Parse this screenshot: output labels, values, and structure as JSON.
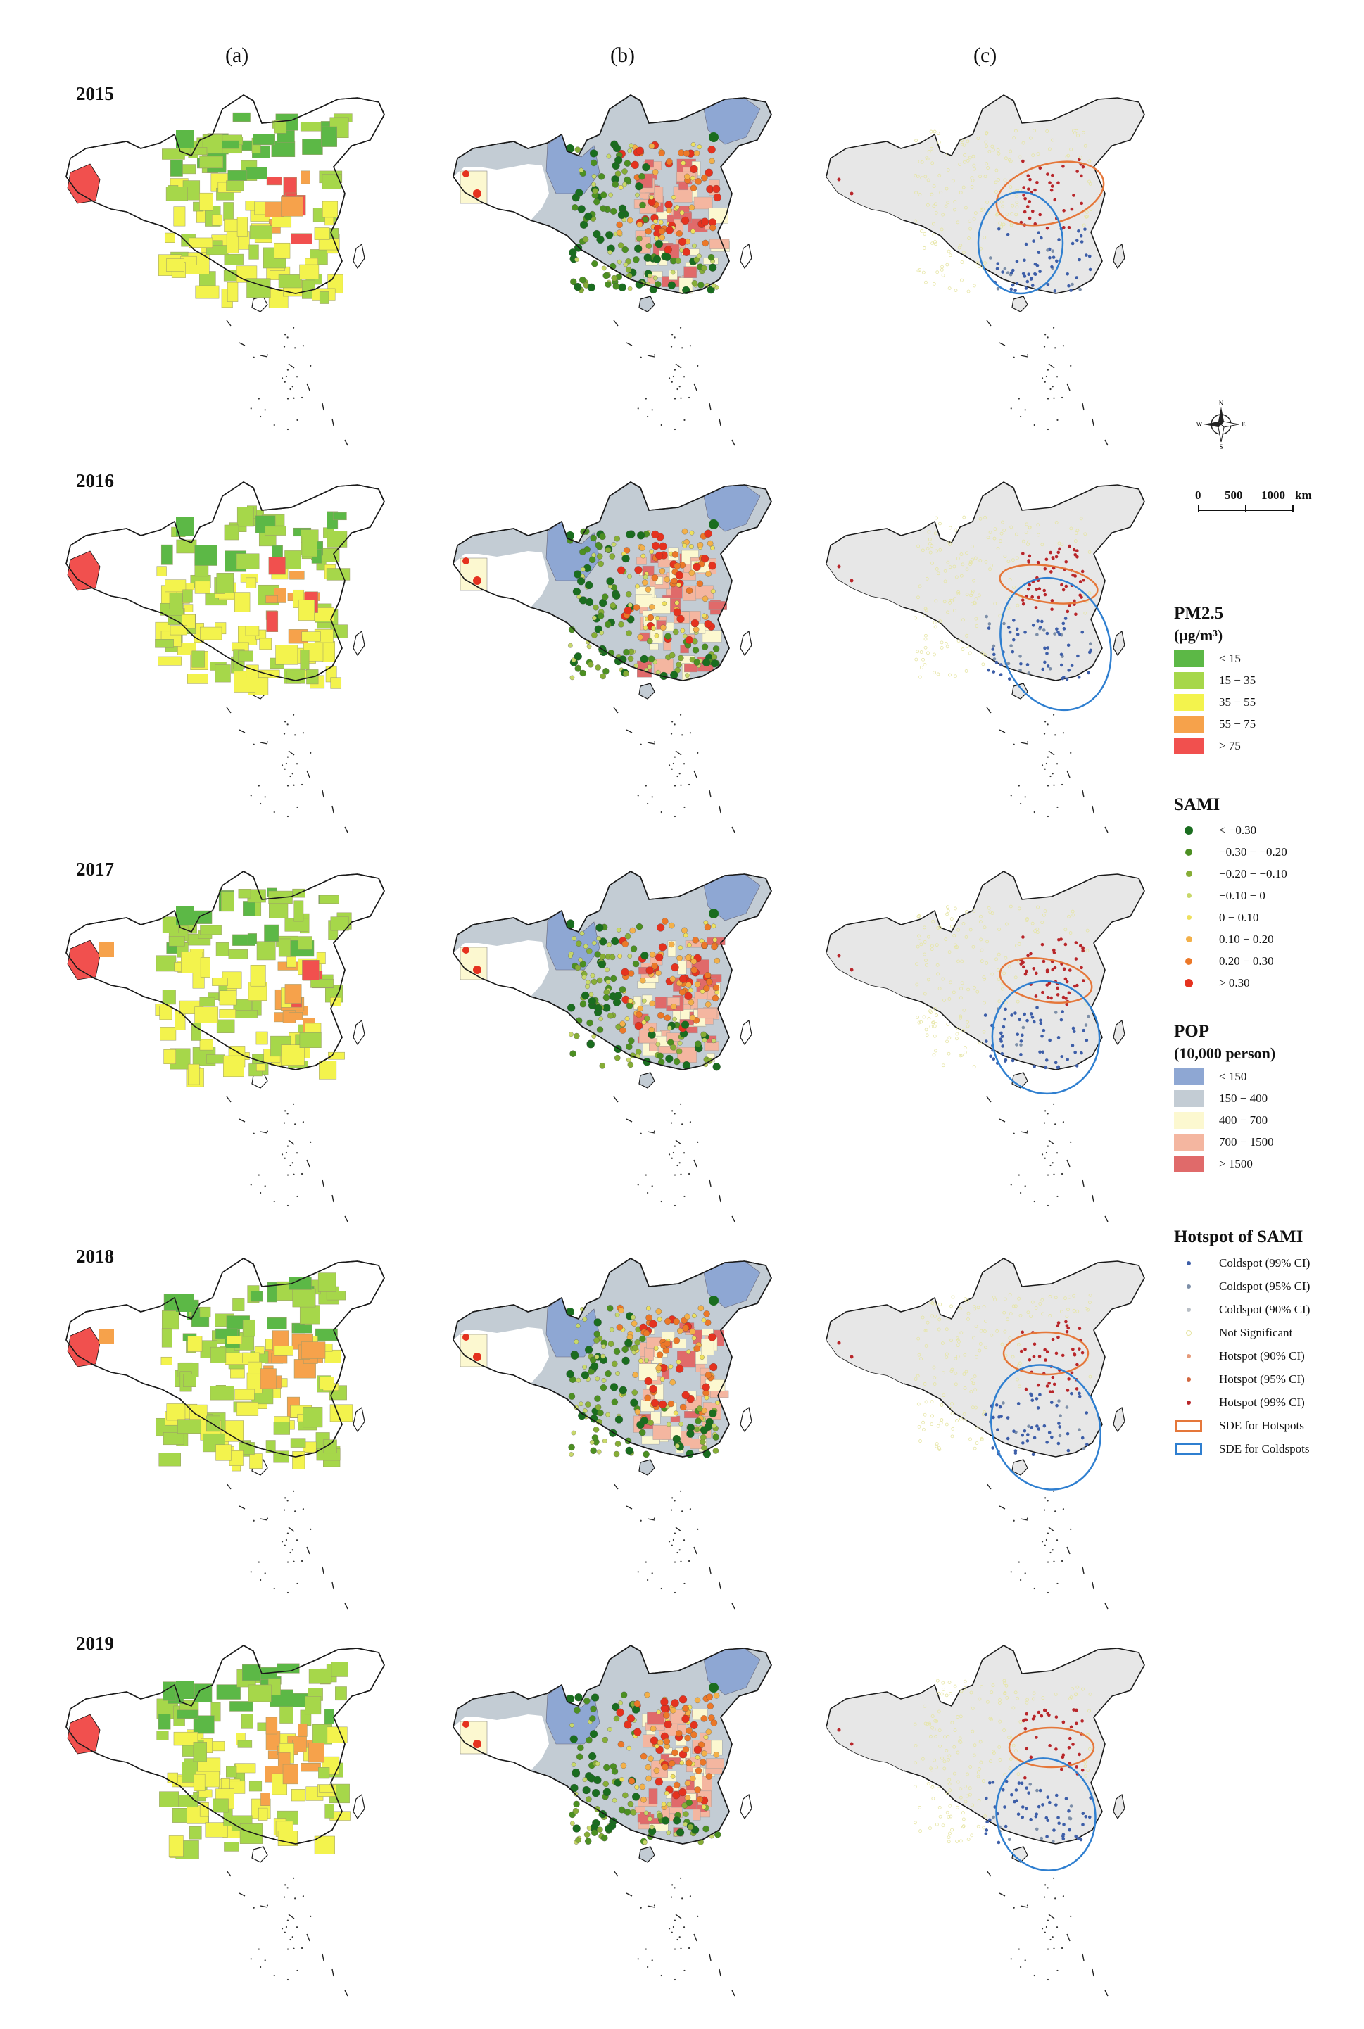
{
  "columns": [
    "(a)",
    "(b)",
    "(c)"
  ],
  "years": [
    "2015",
    "2016",
    "2017",
    "2018",
    "2019"
  ],
  "compass": {
    "n": "N",
    "s": "S",
    "e": "E",
    "w": "W"
  },
  "scale": {
    "zero": "0",
    "mid": "500",
    "max": "1000",
    "unit": "km"
  },
  "pm25_legend": {
    "title": "PM2.5",
    "unit": "(μg/m³)",
    "classes": [
      {
        "label": "< 15",
        "color": "#5cb846"
      },
      {
        "label": "15 − 35",
        "color": "#a6d74a"
      },
      {
        "label": "35 − 55",
        "color": "#f3f34d"
      },
      {
        "label": "55 − 75",
        "color": "#f6a24b"
      },
      {
        "label": "> 75",
        "color": "#f1504e"
      }
    ]
  },
  "sami_legend": {
    "title": "SAMI",
    "classes": [
      {
        "label": "< −0.30",
        "color": "#1a6d1f",
        "size": 12
      },
      {
        "label": "−0.30 − −0.20",
        "color": "#4c8f22",
        "size": 10
      },
      {
        "label": "−0.20 − −0.10",
        "color": "#86ad36",
        "size": 9
      },
      {
        "label": "−0.10 − 0",
        "color": "#c8d86a",
        "size": 7
      },
      {
        "label": "0 − 0.10",
        "color": "#eee05d",
        "size": 7
      },
      {
        "label": "0.10 − 0.20",
        "color": "#f3b049",
        "size": 9
      },
      {
        "label": "0.20 − 0.30",
        "color": "#ec7828",
        "size": 10
      },
      {
        "label": "> 0.30",
        "color": "#e5321f",
        "size": 12
      }
    ]
  },
  "pop_legend": {
    "title": "POP",
    "unit": "(10,000 person)",
    "classes": [
      {
        "label": "< 150",
        "color": "#8ea7d3"
      },
      {
        "label": "150 − 400",
        "color": "#c3ccd4"
      },
      {
        "label": "400 − 700",
        "color": "#fcf8d0"
      },
      {
        "label": "700 − 1500",
        "color": "#f4b6a0"
      },
      {
        "label": "> 1500",
        "color": "#e06a6a"
      }
    ]
  },
  "hotspot_legend": {
    "title": "Hotspot of SAMI",
    "classes": [
      {
        "label": "Coldspot (99% CI)",
        "color": "#3d5ea8",
        "kind": "dot"
      },
      {
        "label": "Coldspot (95% CI)",
        "color": "#7d8fa8",
        "kind": "dot"
      },
      {
        "label": "Coldspot (90% CI)",
        "color": "#b9bfc6",
        "kind": "dot"
      },
      {
        "label": "Not Significant",
        "color": "#e6e5a3",
        "kind": "hollow"
      },
      {
        "label": "Hotspot (90% CI)",
        "color": "#e59a7a",
        "kind": "dot"
      },
      {
        "label": "Hotspot (95% CI)",
        "color": "#d2673f",
        "kind": "dot"
      },
      {
        "label": "Hotspot (99% CI)",
        "color": "#b8262a",
        "kind": "dot"
      },
      {
        "label": "SDE for Hotspots",
        "color": "#e5773a",
        "kind": "ring"
      },
      {
        "label": "SDE for Coldspots",
        "color": "#2f7fd0",
        "kind": "ring"
      }
    ]
  }
}
